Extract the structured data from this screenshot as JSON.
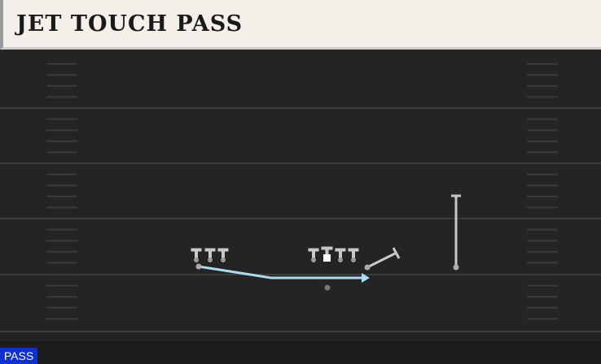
{
  "header": {
    "title": "JET TOUCH PASS"
  },
  "tag": {
    "label": "PASS"
  }
}
